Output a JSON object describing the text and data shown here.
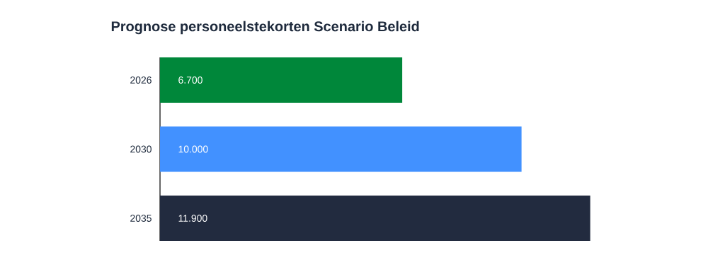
{
  "chart_data": {
    "type": "bar",
    "orientation": "horizontal",
    "title": "Prognose personeelstekorten Scenario Beleid",
    "categories": [
      "2026",
      "2030",
      "2035"
    ],
    "values": [
      6700,
      10000,
      11900
    ],
    "value_labels": [
      "6.700",
      "10.000",
      "11.900"
    ],
    "colors": [
      "#00873a",
      "#4291ff",
      "#222b3f"
    ]
  }
}
